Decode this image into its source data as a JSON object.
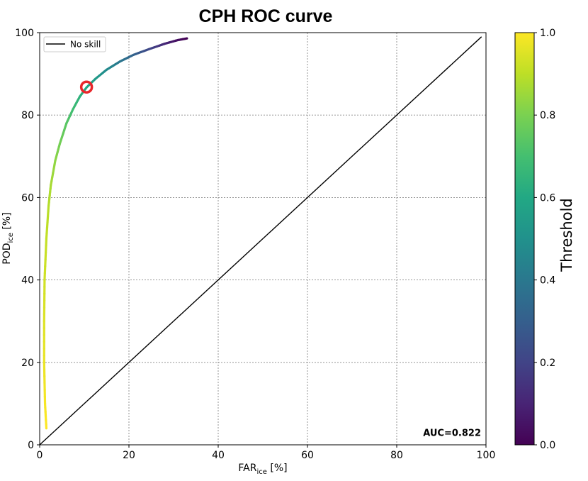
{
  "chart_data": {
    "type": "line",
    "title": "CPH ROC curve",
    "xlabel": {
      "main": "FAR",
      "sub": "ice",
      "unit": " [%]"
    },
    "ylabel": {
      "main": "POD",
      "sub": "ice",
      "unit": " [%]"
    },
    "xlim": [
      0,
      100
    ],
    "ylim": [
      0,
      100
    ],
    "x_ticks": [
      "0",
      "20",
      "40",
      "60",
      "80",
      "100"
    ],
    "y_ticks": [
      "0",
      "20",
      "40",
      "60",
      "80",
      "100"
    ],
    "grid": true,
    "legend": {
      "placement": "top-left",
      "entries": [
        "No skill"
      ]
    },
    "no_skill_line": {
      "x": [
        0,
        99
      ],
      "y": [
        0,
        99
      ],
      "color": "#000000"
    },
    "roc_curve": {
      "colormap": "viridis",
      "points": [
        {
          "far": 1.5,
          "pod": 4,
          "threshold": 1.0
        },
        {
          "far": 1.2,
          "pod": 10,
          "threshold": 0.99
        },
        {
          "far": 1.0,
          "pod": 20,
          "threshold": 0.97
        },
        {
          "far": 1.0,
          "pod": 30,
          "threshold": 0.95
        },
        {
          "far": 1.1,
          "pod": 40,
          "threshold": 0.93
        },
        {
          "far": 1.5,
          "pod": 50,
          "threshold": 0.91
        },
        {
          "far": 2.0,
          "pod": 58,
          "threshold": 0.89
        },
        {
          "far": 2.5,
          "pod": 63,
          "threshold": 0.87
        },
        {
          "far": 3.5,
          "pod": 69,
          "threshold": 0.83
        },
        {
          "far": 4.5,
          "pod": 73,
          "threshold": 0.79
        },
        {
          "far": 6.0,
          "pod": 78,
          "threshold": 0.74
        },
        {
          "far": 7.5,
          "pod": 81.5,
          "threshold": 0.69
        },
        {
          "far": 9.0,
          "pod": 84.5,
          "threshold": 0.64
        },
        {
          "far": 10.5,
          "pod": 86.7,
          "threshold": 0.6
        },
        {
          "far": 12.5,
          "pod": 88.8,
          "threshold": 0.55
        },
        {
          "far": 15.0,
          "pod": 91,
          "threshold": 0.48
        },
        {
          "far": 18.0,
          "pod": 93,
          "threshold": 0.4
        },
        {
          "far": 21.0,
          "pod": 94.6,
          "threshold": 0.32
        },
        {
          "far": 24.5,
          "pod": 96,
          "threshold": 0.22
        },
        {
          "far": 28.0,
          "pod": 97.3,
          "threshold": 0.12
        },
        {
          "far": 31.0,
          "pod": 98.2,
          "threshold": 0.04
        },
        {
          "far": 33.0,
          "pod": 98.6,
          "threshold": 0.0
        }
      ]
    },
    "marker": {
      "far": 10.5,
      "pod": 86.8,
      "color": "#e8262b",
      "shape": "open-circle"
    },
    "annotation": "AUC=0.822",
    "colorbar": {
      "label": "Threshold",
      "range": [
        0,
        1
      ],
      "ticks": [
        "0.0",
        "0.2",
        "0.4",
        "0.6",
        "0.8",
        "1.0"
      ],
      "stops": [
        "#440154",
        "#482475",
        "#414487",
        "#355f8d",
        "#2a788e",
        "#21918c",
        "#22a884",
        "#44bf70",
        "#7ad151",
        "#bddf26",
        "#fde725"
      ]
    }
  }
}
